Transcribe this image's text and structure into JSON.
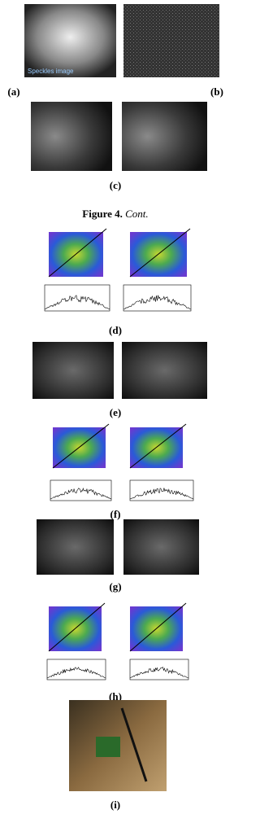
{
  "figure": {
    "inset_text": "Speckles image",
    "panels": [
      "(a)",
      "(b)",
      "(c)",
      "(d)",
      "(e)",
      "(f)",
      "(g)",
      "(h)",
      "(i)"
    ],
    "caption": {
      "label": "Figure 4.",
      "text": "Cont."
    }
  }
}
